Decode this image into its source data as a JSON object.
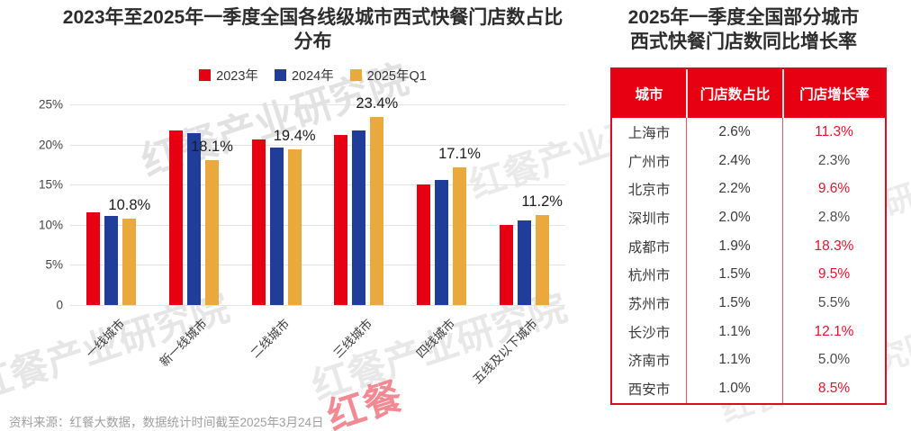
{
  "page": {
    "source_note": "资料来源：红餐大数据，数据统计时间截至2025年3月24日",
    "watermark_text": "红餐产业研究院",
    "watermark_logo": "红餐",
    "colors": {
      "accent_red": "#e60012",
      "navy_blue": "#1f3d99",
      "gold": "#e9a93d",
      "table_border": "#d70e22",
      "growth_highlight": "#e8132b"
    }
  },
  "chart_data": [
    {
      "type": "bar",
      "title": "2023年至2025年一季度全国各线级城市西式快餐门店数占比分布",
      "title_lines": [
        "2023年至2025年一季度全国各线级城市西式快餐门店数占比",
        "分布"
      ],
      "categories": [
        "一线城市",
        "新一线城市",
        "二线城市",
        "三线城市",
        "四线城市",
        "五线及以下城市"
      ],
      "series": [
        {
          "name": "2023年",
          "color": "#e60012",
          "values": [
            11.5,
            21.7,
            20.6,
            21.2,
            15.0,
            10.0
          ]
        },
        {
          "name": "2024年",
          "color": "#1f3d99",
          "values": [
            11.1,
            21.4,
            19.6,
            21.8,
            15.6,
            10.5
          ]
        },
        {
          "name": "2025年Q1",
          "color": "#e9a93d",
          "values": [
            10.8,
            18.1,
            19.4,
            23.4,
            17.1,
            11.2
          ]
        }
      ],
      "data_labels": {
        "series": "2025年Q1",
        "values": [
          "10.8%",
          "18.1%",
          "19.4%",
          "23.4%",
          "17.1%",
          "11.2%"
        ]
      },
      "ylim": [
        0,
        25
      ],
      "y_ticks": [
        "25%",
        "20%",
        "15%",
        "10%",
        "5%",
        "0"
      ],
      "grid": true,
      "legend_position": "top"
    },
    {
      "type": "table",
      "title": "2025年一季度全国部分城市西式快餐门店数同比增长率",
      "title_lines": [
        "2025年一季度全国部分城市",
        "西式快餐门店数同比增长率"
      ],
      "columns": [
        "城市",
        "门店数占比",
        "门店增长率"
      ],
      "rows": [
        {
          "city": "上海市",
          "share": "2.6%",
          "growth": "11.3%",
          "growth_red": true
        },
        {
          "city": "广州市",
          "share": "2.4%",
          "growth": "2.3%",
          "growth_red": false
        },
        {
          "city": "北京市",
          "share": "2.2%",
          "growth": "9.6%",
          "growth_red": true
        },
        {
          "city": "深圳市",
          "share": "2.0%",
          "growth": "2.8%",
          "growth_red": false
        },
        {
          "city": "成都市",
          "share": "1.9%",
          "growth": "18.3%",
          "growth_red": true
        },
        {
          "city": "杭州市",
          "share": "1.5%",
          "growth": "9.5%",
          "growth_red": true
        },
        {
          "city": "苏州市",
          "share": "1.5%",
          "growth": "5.5%",
          "growth_red": false
        },
        {
          "city": "长沙市",
          "share": "1.1%",
          "growth": "12.1%",
          "growth_red": true
        },
        {
          "city": "济南市",
          "share": "1.1%",
          "growth": "5.0%",
          "growth_red": false
        },
        {
          "city": "西安市",
          "share": "1.0%",
          "growth": "8.5%",
          "growth_red": true
        }
      ]
    }
  ]
}
